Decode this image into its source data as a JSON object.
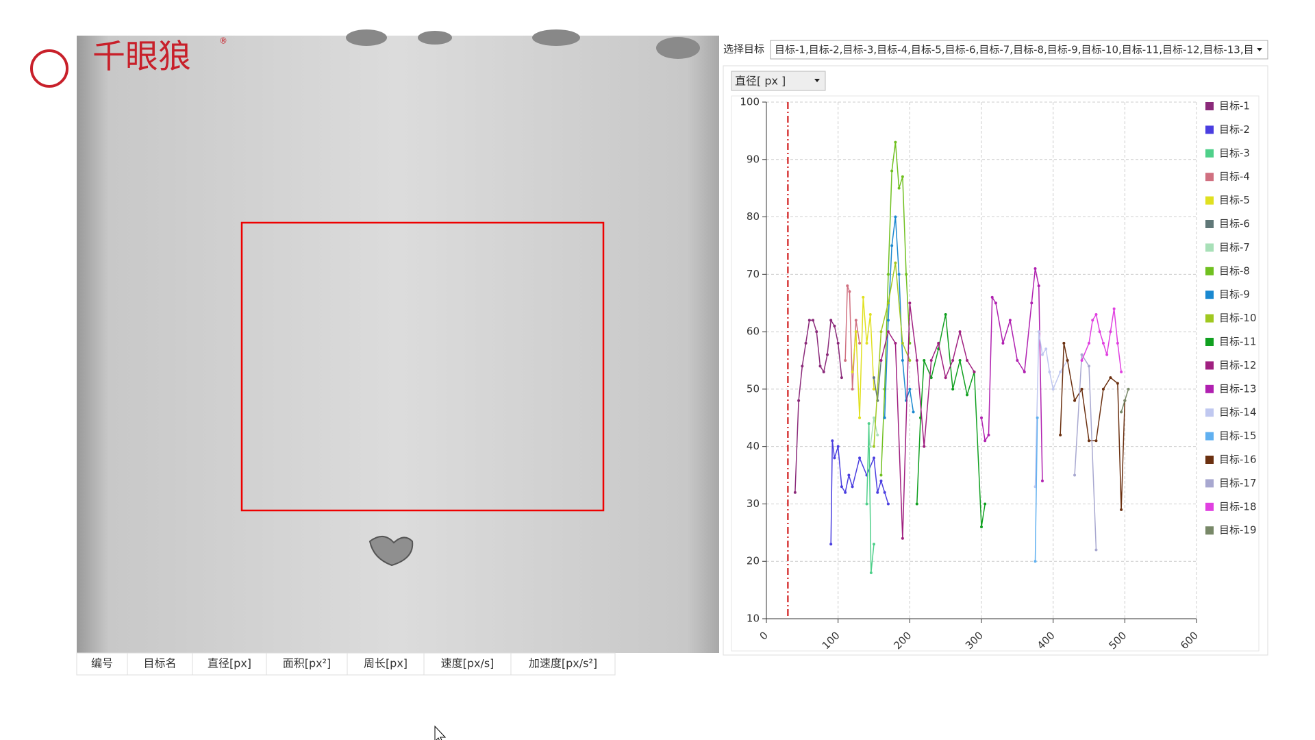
{
  "logo": {
    "text": "千眼狼",
    "mark": "®"
  },
  "target_label": "选择目标",
  "target_select": "目标-1,目标-2,目标-3,目标-4,目标-5,目标-6,目标-7,目标-8,目标-9,目标-10,目标-11,目标-12,目标-13,目",
  "metric_select": "直径[ px ]",
  "table": {
    "headers": [
      "编号",
      "目标名",
      "直径[px]",
      "面积[px²]",
      "周长[px]",
      "速度[px/s]",
      "加速度[px/s²]"
    ]
  },
  "chart_data": {
    "type": "line",
    "xlim": [
      0,
      600
    ],
    "xticks": [
      0,
      100,
      200,
      300,
      400,
      500,
      600
    ],
    "ylim": [
      10,
      100
    ],
    "yticks": [
      10,
      20,
      30,
      40,
      50,
      60,
      70,
      80,
      90,
      100
    ],
    "grid": true,
    "legend": "right",
    "vline": 30,
    "series": [
      {
        "name": "目标-1",
        "color": "#8b2a7a",
        "x": [
          40,
          45,
          50,
          55,
          60,
          65,
          70,
          75,
          80,
          85,
          90,
          95,
          100,
          105
        ],
        "values": [
          32,
          48,
          54,
          58,
          62,
          62,
          60,
          54,
          53,
          56,
          62,
          61,
          58,
          52
        ]
      },
      {
        "name": "目标-2",
        "color": "#4a3ee0",
        "x": [
          90,
          92,
          95,
          100,
          105,
          110,
          115,
          120,
          130,
          140,
          150,
          155,
          160,
          165,
          170
        ],
        "values": [
          23,
          41,
          38,
          40,
          33,
          32,
          35,
          33,
          38,
          35,
          38,
          32,
          34,
          32,
          30
        ]
      },
      {
        "name": "目标-3",
        "color": "#4fd08a",
        "x": [
          140,
          143,
          146,
          150
        ],
        "values": [
          30,
          44,
          18,
          23
        ]
      },
      {
        "name": "目标-4",
        "color": "#d07080",
        "x": [
          110,
          113,
          116,
          120,
          125,
          130
        ],
        "values": [
          55,
          68,
          67,
          50,
          62,
          58
        ]
      },
      {
        "name": "目标-5",
        "color": "#e0e020",
        "x": [
          120,
          125,
          130,
          135,
          140,
          145,
          150
        ],
        "values": [
          53,
          60,
          45,
          66,
          58,
          63,
          50
        ]
      },
      {
        "name": "目标-6",
        "color": "#607878",
        "x": [
          150,
          155,
          160
        ],
        "values": [
          52,
          48,
          55
        ]
      },
      {
        "name": "目标-7",
        "color": "#a8e0b8",
        "x": [
          145,
          150,
          155
        ],
        "values": [
          40,
          45,
          42
        ]
      },
      {
        "name": "目标-8",
        "color": "#70c020",
        "x": [
          160,
          165,
          170,
          175,
          180,
          185,
          190,
          195,
          200
        ],
        "values": [
          35,
          50,
          70,
          88,
          93,
          85,
          87,
          70,
          58
        ]
      },
      {
        "name": "目标-9",
        "color": "#1a88d0",
        "x": [
          165,
          170,
          175,
          180,
          185,
          190,
          195,
          200,
          205
        ],
        "values": [
          45,
          62,
          75,
          80,
          70,
          55,
          48,
          50,
          46
        ]
      },
      {
        "name": "目标-10",
        "color": "#a0c820",
        "x": [
          150,
          160,
          170,
          180,
          190,
          200
        ],
        "values": [
          40,
          60,
          65,
          72,
          58,
          55
        ]
      },
      {
        "name": "目标-11",
        "color": "#10a020",
        "x": [
          210,
          215,
          220,
          230,
          240,
          250,
          260,
          270,
          280,
          290,
          300,
          305
        ],
        "values": [
          30,
          45,
          55,
          52,
          57,
          63,
          50,
          55,
          49,
          53,
          26,
          30
        ]
      },
      {
        "name": "目标-12",
        "color": "#a02080",
        "x": [
          160,
          170,
          180,
          190,
          200,
          210,
          220,
          230,
          240,
          250,
          260,
          270,
          280,
          290
        ],
        "values": [
          55,
          60,
          58,
          24,
          65,
          55,
          40,
          55,
          58,
          52,
          55,
          60,
          55,
          53
        ]
      },
      {
        "name": "目标-13",
        "color": "#b020b0",
        "x": [
          300,
          305,
          310,
          315,
          320,
          330,
          340,
          350,
          360,
          370,
          375,
          380,
          385
        ],
        "values": [
          45,
          41,
          42,
          66,
          65,
          58,
          62,
          55,
          53,
          65,
          71,
          68,
          34
        ]
      },
      {
        "name": "目标-14",
        "color": "#c0c8f0",
        "x": [
          375,
          380,
          385,
          390,
          395,
          400,
          410,
          420
        ],
        "values": [
          33,
          60,
          56,
          57,
          53,
          50,
          53,
          55
        ]
      },
      {
        "name": "目标-15",
        "color": "#60b0f0",
        "x": [
          375,
          378
        ],
        "values": [
          20,
          45
        ]
      },
      {
        "name": "目标-16",
        "color": "#6b3010",
        "x": [
          410,
          415,
          420,
          430,
          440,
          450,
          460,
          470,
          480,
          490,
          495,
          500
        ],
        "values": [
          42,
          58,
          55,
          48,
          50,
          41,
          41,
          50,
          52,
          51,
          29,
          48
        ]
      },
      {
        "name": "目标-17",
        "color": "#a8a8d0",
        "x": [
          430,
          440,
          450,
          460
        ],
        "values": [
          35,
          56,
          54,
          22
        ]
      },
      {
        "name": "目标-18",
        "color": "#e040e0",
        "x": [
          440,
          450,
          455,
          460,
          465,
          470,
          475,
          480,
          485,
          490,
          495
        ],
        "values": [
          55,
          58,
          62,
          63,
          60,
          58,
          56,
          60,
          64,
          58,
          53
        ]
      },
      {
        "name": "目标-19",
        "color": "#788868",
        "x": [
          495,
          500,
          505
        ],
        "values": [
          46,
          48,
          50
        ]
      }
    ]
  }
}
